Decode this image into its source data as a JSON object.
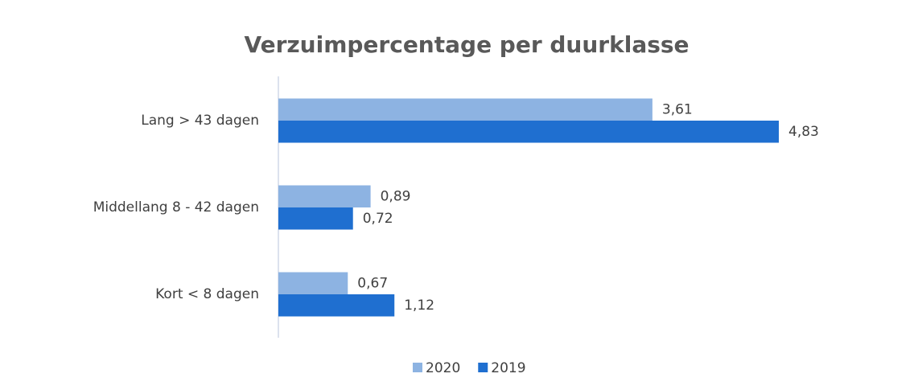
{
  "chart_data": {
    "type": "hbar",
    "title": "Verzuimpercentage per duurklasse",
    "categories": [
      "Lang > 43 dagen",
      "Middellang 8 - 42 dagen",
      "Kort < 8 dagen"
    ],
    "series": [
      {
        "name": "2020",
        "color": "#8db3e2",
        "values": [
          3.61,
          0.89,
          0.67
        ],
        "value_labels": [
          "3,61",
          "0,89",
          "0,67"
        ]
      },
      {
        "name": "2019",
        "color": "#1f6fd0",
        "values": [
          4.83,
          0.72,
          1.12
        ],
        "value_labels": [
          "4,83",
          "0,72",
          "1,12"
        ]
      }
    ],
    "legend": "bottom"
  }
}
